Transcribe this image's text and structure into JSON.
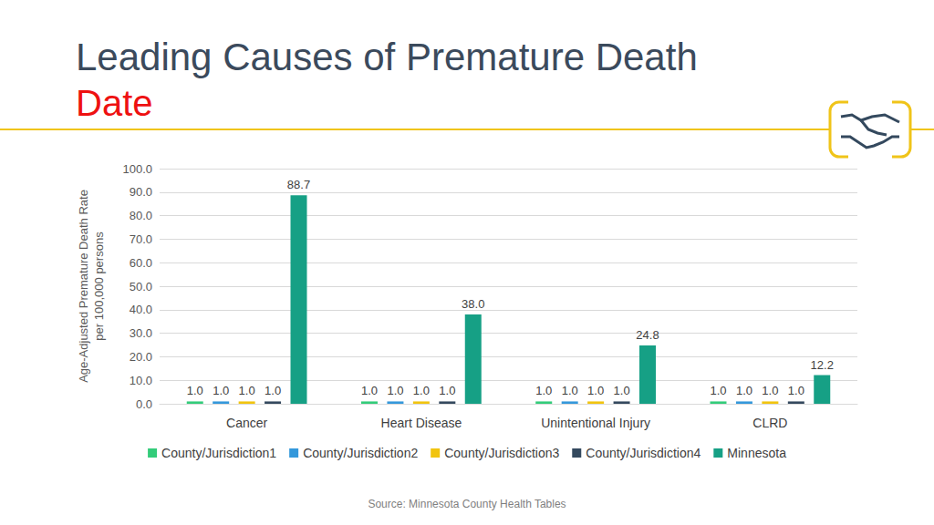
{
  "chart_data": {
    "type": "bar",
    "title": "Leading Causes of Premature Death",
    "subtitle": "Date",
    "y_label": "Age-Adjusted Premature Death Rate\nper 100,000 persons",
    "source": "Source: Minnesota County Health Tables",
    "categories": [
      "Cancer",
      "Heart Disease",
      "Unintentional Injury",
      "CLRD"
    ],
    "series": [
      {
        "name": "County/Jurisdiction1",
        "color": "#33cc7a",
        "values": [
          1,
          1,
          1,
          1
        ],
        "value_labels": [
          "1.0",
          "1.0",
          "1.0",
          "1.0"
        ]
      },
      {
        "name": "County/Jurisdiction2",
        "color": "#3498db",
        "values": [
          1,
          1,
          1,
          1
        ],
        "value_labels": [
          "1.0",
          "1.0",
          "1.0",
          "1.0"
        ]
      },
      {
        "name": "County/Jurisdiction3",
        "color": "#f1c40f",
        "values": [
          1,
          1,
          1,
          1
        ],
        "value_labels": [
          "1.0",
          "1.0",
          "1.0",
          "1.0"
        ]
      },
      {
        "name": "County/Jurisdiction4",
        "color": "#34495e",
        "values": [
          1,
          1,
          1,
          1
        ],
        "value_labels": [
          "1.0",
          "1.0",
          "1.0",
          "1.0"
        ]
      },
      {
        "name": "Minnesota",
        "color": "#16a085",
        "values": [
          88.7,
          38,
          24.8,
          12.2
        ],
        "value_labels": [
          "88.7",
          "38.0",
          "24.8",
          "12.2"
        ]
      }
    ],
    "ylim": [
      0,
      100
    ],
    "yticks": [
      {
        "value": 0,
        "label": "0.0"
      },
      {
        "value": 10,
        "label": "10.0"
      },
      {
        "value": 20,
        "label": "20.0"
      },
      {
        "value": 30,
        "label": "30.0"
      },
      {
        "value": 40,
        "label": "40.0"
      },
      {
        "value": 50,
        "label": "50.0"
      },
      {
        "value": 60,
        "label": "60.0"
      },
      {
        "value": 70,
        "label": "70.0"
      },
      {
        "value": 80,
        "label": "80.0"
      },
      {
        "value": 90,
        "label": "90.0"
      },
      {
        "value": 100,
        "label": "100.0"
      }
    ],
    "grid": true,
    "legend": "bottom",
    "data_labels": true
  }
}
